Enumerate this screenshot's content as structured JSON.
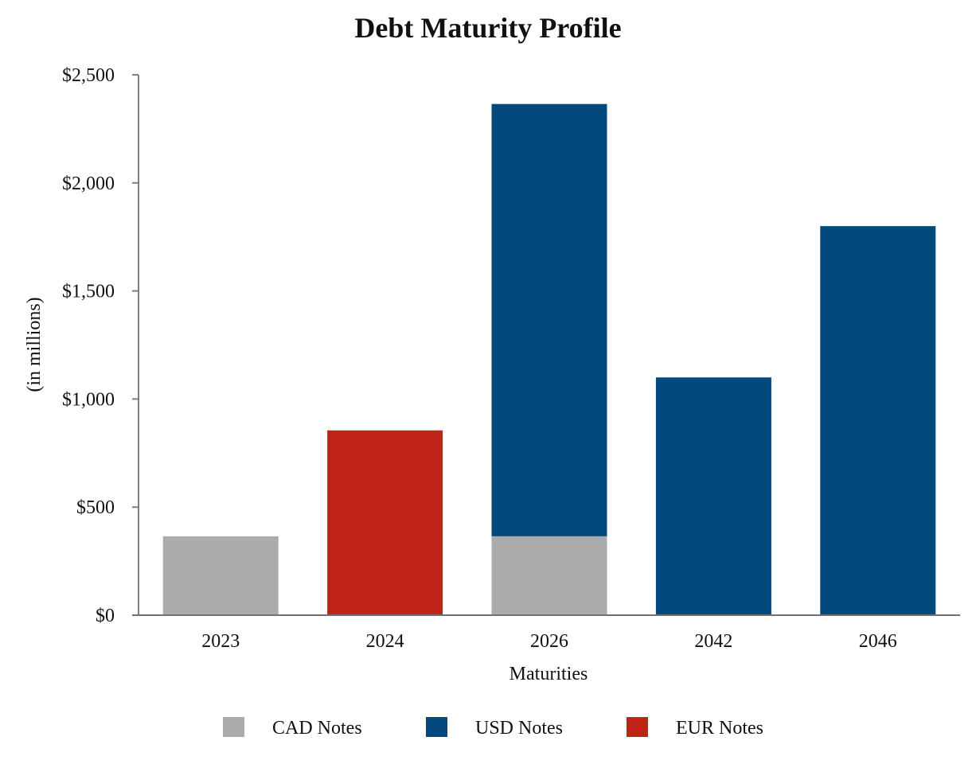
{
  "chart_data": {
    "type": "bar",
    "stacked": true,
    "title": "Debt Maturity Profile",
    "xlabel": "Maturities",
    "ylabel": "(in millions)",
    "categories": [
      "2023",
      "2024",
      "2026",
      "2042",
      "2046"
    ],
    "ylim": [
      0,
      2500
    ],
    "yticks": [
      0,
      500,
      1000,
      1500,
      2000,
      2500
    ],
    "ytick_labels": [
      "$0",
      "$500",
      "$1,000",
      "$1,500",
      "$2,000",
      "$2,500"
    ],
    "series": [
      {
        "name": "CAD Notes",
        "color": "#ababab",
        "values": [
          365,
          0,
          365,
          0,
          0
        ]
      },
      {
        "name": "USD Notes",
        "color": "#03497d",
        "values": [
          0,
          0,
          2000,
          1100,
          1800
        ]
      },
      {
        "name": "EUR Notes",
        "color": "#c02418",
        "values": [
          0,
          855,
          0,
          0,
          0
        ]
      }
    ],
    "grid": false,
    "legend_position": "bottom"
  }
}
